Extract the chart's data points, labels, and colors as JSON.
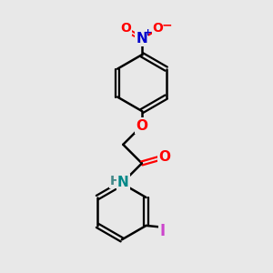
{
  "bg_color": "#e8e8e8",
  "bond_color": "#000000",
  "bond_width": 1.8,
  "atom_colors": {
    "O": "#ff0000",
    "N_nitro": "#0000cc",
    "N_amide": "#008888",
    "I": "#cc44cc",
    "H": "#448888",
    "C": "#000000"
  },
  "font_size": 10,
  "fig_width": 3.0,
  "fig_height": 3.0,
  "dpi": 100
}
